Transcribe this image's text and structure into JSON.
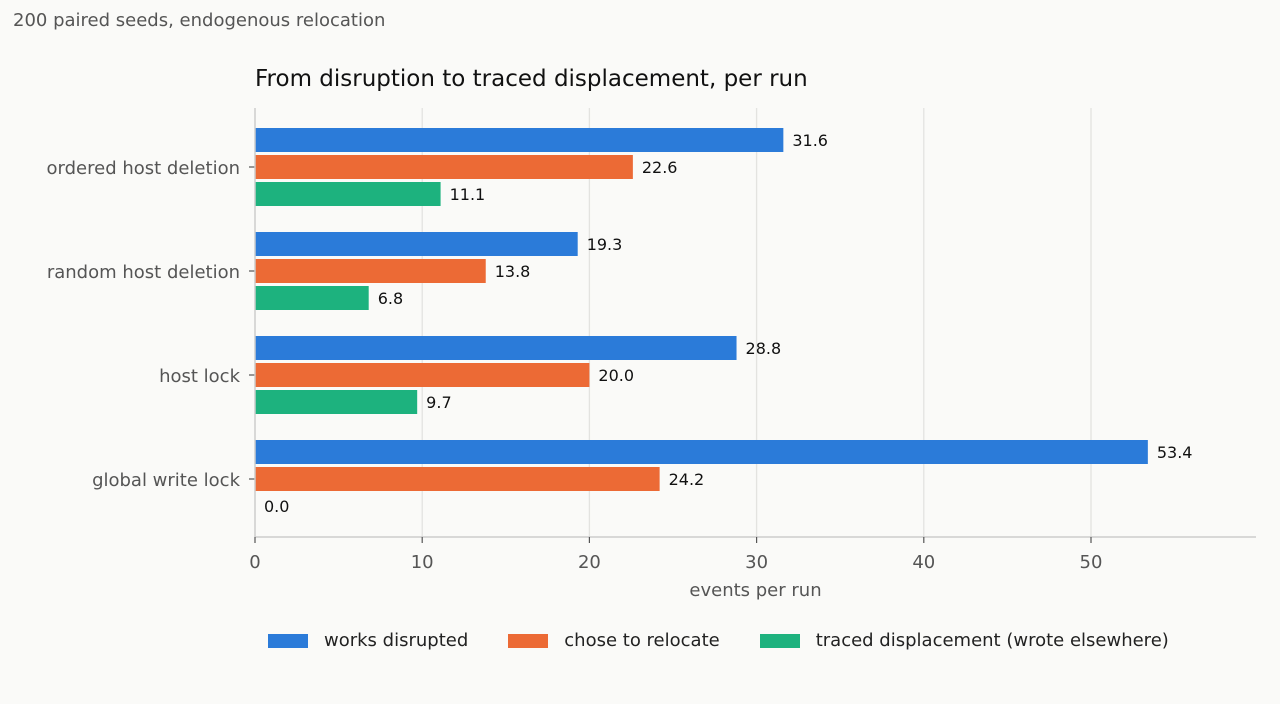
{
  "subtitle": "200 paired seeds, endogenous relocation",
  "chart_data": {
    "type": "bar",
    "orientation": "horizontal",
    "title": "From disruption to traced displacement, per run",
    "xlabel": "events per run",
    "ylabel": "",
    "xlim": [
      0,
      60
    ],
    "xticks": [
      0,
      10,
      20,
      30,
      40,
      50
    ],
    "categories": [
      "ordered host deletion",
      "random host deletion",
      "host lock",
      "global write lock"
    ],
    "series": [
      {
        "name": "works disrupted",
        "color": "#2b7bd9",
        "values": [
          31.6,
          19.3,
          28.8,
          53.4
        ]
      },
      {
        "name": "chose to relocate",
        "color": "#ec6a35",
        "values": [
          22.6,
          13.8,
          20.0,
          24.2
        ]
      },
      {
        "name": "traced displacement (wrote elsewhere)",
        "color": "#1db27e",
        "values": [
          11.1,
          6.8,
          9.7,
          0.0
        ]
      }
    ],
    "grid": "vertical",
    "legend_position": "bottom",
    "data_labels": true
  }
}
